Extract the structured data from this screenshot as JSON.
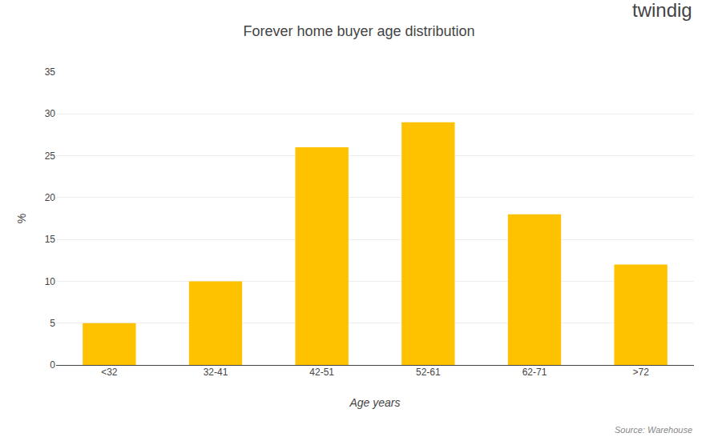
{
  "chart_data": {
    "type": "bar",
    "title": "Forever home buyer age distribution",
    "categories": [
      "<32",
      "32-41",
      "42-51",
      "52-61",
      "62-71",
      ">72"
    ],
    "values": [
      5,
      10,
      26,
      29,
      18,
      12
    ],
    "color": "#FFC200",
    "xlabel": "Age years",
    "ylabel": "%",
    "ylim": [
      0,
      35
    ],
    "yticks": [
      0,
      5,
      10,
      15,
      20,
      25,
      30,
      35
    ],
    "grid": true,
    "annotations": [
      "twindig",
      "Source: Warehouse"
    ]
  }
}
